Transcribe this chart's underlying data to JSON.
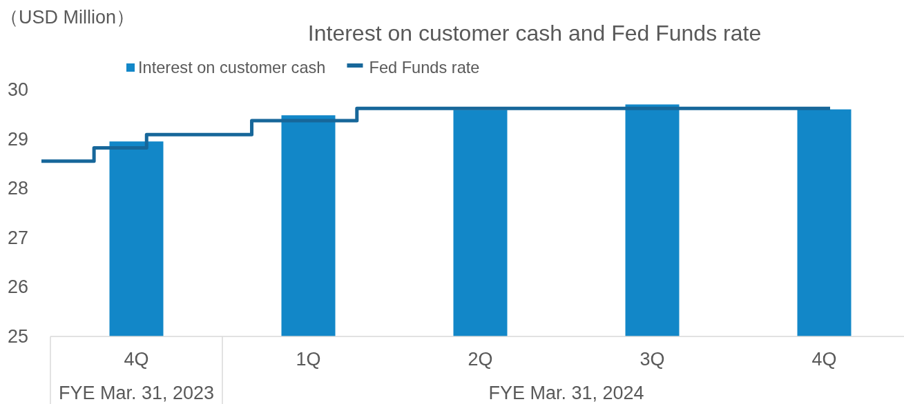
{
  "chart_data": [
    {
      "type": "bar",
      "title": "Interest on customer cash and Fed Funds rate",
      "ylabel": "（USD Million）",
      "categories": [
        "4Q",
        "1Q",
        "2Q",
        "3Q",
        "4Q"
      ],
      "series": [
        {
          "name": "Interest on customer cash",
          "color": "#1287c8",
          "values": [
            28.95,
            29.48,
            29.59,
            29.7,
            29.6
          ]
        }
      ],
      "ylim": [
        25,
        30
      ],
      "yticks": [
        25,
        26,
        27,
        28,
        29,
        30
      ],
      "annotations": [
        "FYE Mar. 31, 2023",
        "FYE Mar. 31, 2024"
      ],
      "legend": "top"
    },
    {
      "type": "step",
      "categories": [
        null,
        null,
        null,
        null,
        null,
        null,
        null,
        null,
        null,
        null,
        null,
        null,
        null,
        null,
        null,
        null
      ],
      "series": [
        {
          "name": "Fed Funds rate",
          "color": "#17679a",
          "values": [
            28.55,
            28.82,
            29.09,
            29.09,
            29.37,
            29.37,
            29.62,
            29.62,
            29.62,
            29.62,
            29.62,
            29.62,
            29.62,
            29.62,
            29.62,
            29.62
          ]
        }
      ],
      "ylim": [
        25,
        30
      ],
      "tick_labels": false,
      "legend": "top"
    }
  ]
}
